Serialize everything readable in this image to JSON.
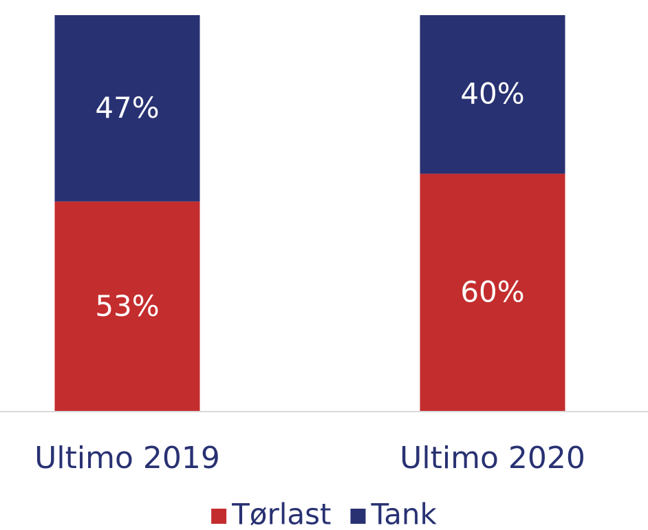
{
  "chart_data": {
    "type": "stacked_bar",
    "categories": [
      "Ultimo 2019",
      "Ultimo 2020"
    ],
    "series": [
      {
        "name": "Tørlast",
        "color": "#c42d2e",
        "values": [
          53,
          60
        ],
        "value_labels": [
          "53%",
          "60%"
        ]
      },
      {
        "name": "Tank",
        "color": "#283172",
        "values": [
          47,
          40
        ],
        "value_labels": [
          "47%",
          "40%"
        ]
      }
    ],
    "legend": "bottom"
  }
}
